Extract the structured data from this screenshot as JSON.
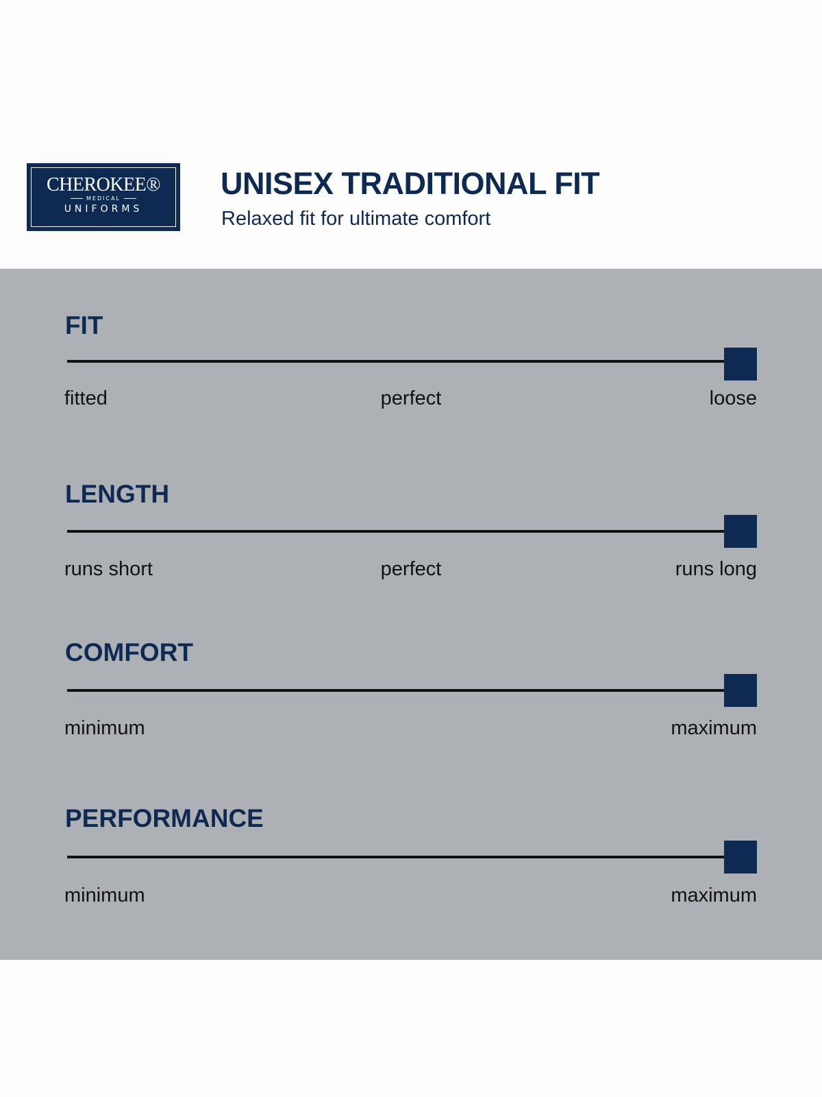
{
  "logo": {
    "brand": "CHEROKEE®",
    "medical": "MEDICAL",
    "uniforms": "UNIFORMS"
  },
  "header": {
    "title": "UNISEX TRADITIONAL FIT",
    "subtitle": "Relaxed fit for ultimate comfort"
  },
  "colors": {
    "navy": "#0f2a52",
    "band": "#adb1b5",
    "track": "#111111"
  },
  "metrics": [
    {
      "name": "FIT",
      "labels": {
        "left": "fitted",
        "middle": "perfect",
        "right": "loose"
      },
      "value": 1.0
    },
    {
      "name": "LENGTH",
      "labels": {
        "left": "runs short",
        "middle": "perfect",
        "right": "runs long"
      },
      "value": 1.0
    },
    {
      "name": "COMFORT",
      "labels": {
        "left": "minimum",
        "right": "maximum"
      },
      "value": 1.0
    },
    {
      "name": "PERFORMANCE",
      "labels": {
        "left": "minimum",
        "right": "maximum"
      },
      "value": 1.0
    }
  ]
}
